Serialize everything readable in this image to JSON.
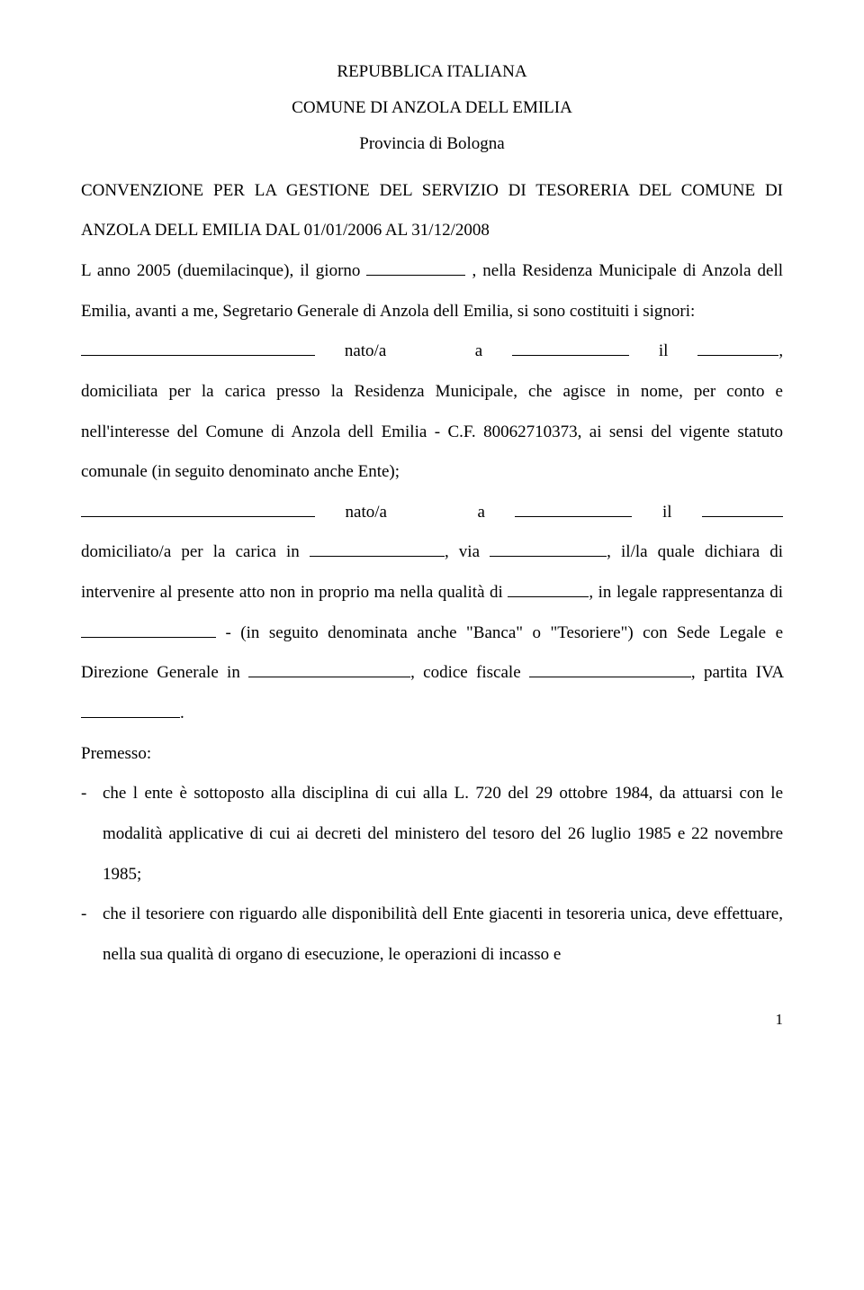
{
  "header": {
    "line1": "REPUBBLICA ITALIANA",
    "line2": "COMUNE DI ANZOLA DELL EMILIA",
    "line3": "Provincia di Bologna"
  },
  "intro": {
    "convenzione_a": "CONVENZIONE PER LA GESTIONE DEL SERVIZIO DI TESORERIA DEL COMUNE",
    "convenzione_b": "DI ANZOLA DELL EMILIA DAL 01/01/2006 AL 31/12/2008",
    "anno_a": "L anno",
    "anno_b": "2005",
    "duemilacinque": "(duemilacinque), il giorno",
    "residenza": ", nella Residenza Municipale di",
    "anzola_segretario": "Anzola dell Emilia, avanti a me, Segretario Generale di Anzola dell Emilia, si sono",
    "costituiti": "costituiti i signori:"
  },
  "person1": {
    "nato": "nato/a",
    "a": "a",
    "il": "il",
    "comma": ",",
    "domiciliata": "domiciliata per la",
    "carica_residenza": "carica presso la Residenza Municipale, che agisce in nome, per conto e",
    "nellinteresse": "nell'interesse del Comune di Anzola dell Emilia - C.F. 80062710373, ai sensi del vigente",
    "statuto": "statuto comunale (in seguito denominato anche Ente);"
  },
  "person2": {
    "nato": "nato/a",
    "a": "a",
    "il": "il",
    "domiciliato": "domiciliato/a per la carica in",
    "via": ", via",
    "illaquale": ", il/la quale",
    "dichiara": "dichiara di intervenire al presente atto non in proprio ma nella qualità di",
    "in": ", in",
    "legale": "legale rappresentanza di",
    "inseguito": "- (in seguito denominata anche \"Banca\" o",
    "tesoriere": "\"Tesoriere\") con Sede Legale e Direzione Generale in",
    "codice": ", codice",
    "fiscale": "fiscale",
    "partita": ", partita IVA",
    "period": "."
  },
  "premesso": {
    "label": "Premesso:",
    "li1": "che l ente è sottoposto alla disciplina di cui alla L. 720 del 29 ottobre 1984, da attuarsi con le modalità applicative di cui ai decreti del ministero del tesoro del 26 luglio 1985 e 22 novembre 1985;",
    "li2": "che il tesoriere con riguardo alle disponibilità dell Ente giacenti in tesoreria unica, deve effettuare, nella sua qualità di organo di esecuzione, le operazioni di incasso e"
  },
  "page_number": "1"
}
